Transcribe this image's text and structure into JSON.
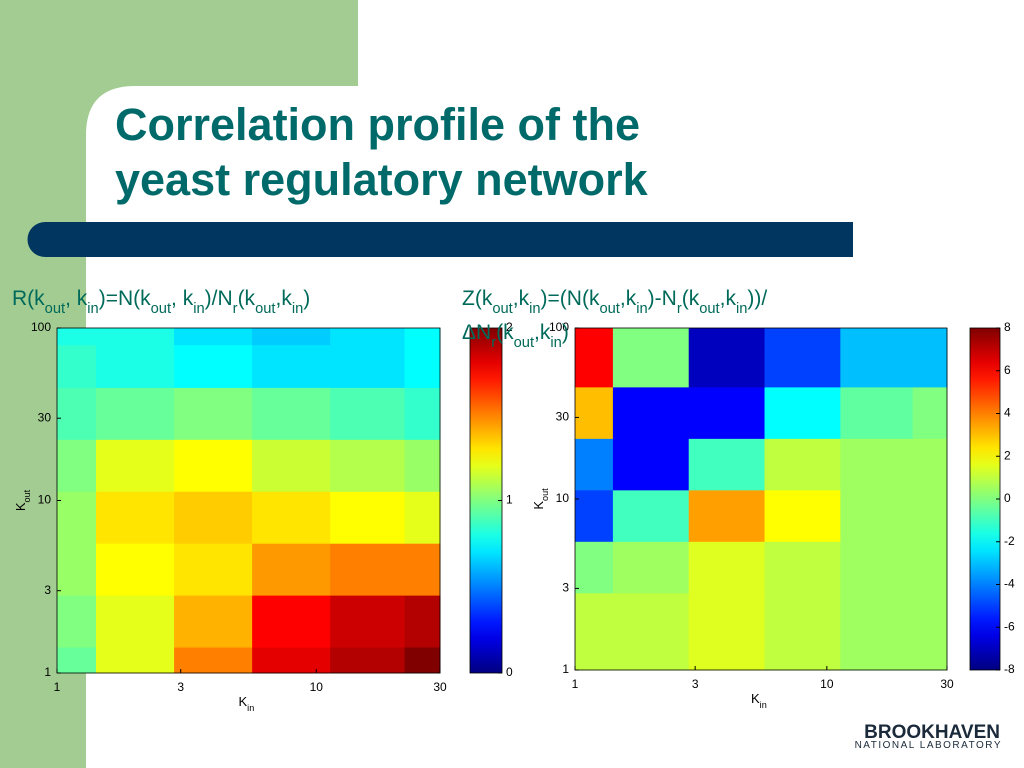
{
  "title": [
    "Correlation profile of the",
    "yeast regulatory network"
  ],
  "logo": {
    "name": "BROOKHAVEN",
    "subtitle": "NATIONAL LABORATORY"
  },
  "chart_data": [
    {
      "type": "heatmap",
      "formula": [
        [
          "R(k",
          "out",
          ", k",
          "in",
          ")=N(k",
          "out",
          ", k",
          "in",
          ")/N",
          "r",
          "(k",
          "out",
          ",k",
          "in",
          ")"
        ]
      ],
      "xlabel": [
        "K",
        "in"
      ],
      "ylabel": [
        "K",
        "out"
      ],
      "xscale": "log",
      "yscale": "log",
      "colormap": "jet",
      "x": [
        1,
        2,
        4,
        8,
        16,
        30
      ],
      "y": [
        1,
        2,
        4,
        8,
        16,
        32,
        64,
        100
      ],
      "values": [
        [
          0.95,
          1.2,
          1.5,
          1.8,
          1.9,
          2.0
        ],
        [
          1.0,
          1.2,
          1.4,
          1.75,
          1.85,
          1.9
        ],
        [
          1.05,
          1.25,
          1.3,
          1.45,
          1.5,
          1.5
        ],
        [
          1.05,
          1.3,
          1.35,
          1.3,
          1.25,
          1.2
        ],
        [
          1.0,
          1.2,
          1.25,
          1.15,
          1.1,
          1.05
        ],
        [
          0.9,
          0.95,
          1.0,
          0.95,
          0.9,
          0.85
        ],
        [
          0.85,
          0.8,
          0.75,
          0.7,
          0.7,
          0.75
        ],
        [
          0.8,
          0.8,
          0.7,
          0.65,
          0.7,
          0.75
        ]
      ],
      "xlim": [
        1,
        30
      ],
      "ylim": [
        1,
        100
      ],
      "xticks": [
        1,
        3,
        10,
        30
      ],
      "yticks": [
        1,
        3,
        10,
        30,
        100
      ],
      "clim": [
        0,
        2
      ],
      "cticks": [
        0,
        1,
        2
      ]
    },
    {
      "type": "heatmap",
      "formula": [
        [
          "Z(k",
          "out",
          ",k",
          "in",
          ")=(N(k",
          "out",
          ",k",
          "in",
          ")-N",
          "r",
          "(k",
          "out",
          ",k",
          "in",
          "))/"
        ],
        [
          "ΔN",
          "r",
          "(k",
          "out",
          ",k",
          "in",
          ")"
        ]
      ],
      "xlabel": [
        "K",
        "in"
      ],
      "ylabel": [
        "K",
        "out"
      ],
      "xscale": "log",
      "yscale": "log",
      "colormap": "jet",
      "x": [
        1,
        2,
        4,
        8,
        16,
        30
      ],
      "y": [
        1,
        2,
        4,
        8,
        16,
        32,
        64,
        100
      ],
      "values": [
        [
          1,
          1,
          1.5,
          1,
          0.5,
          0.5
        ],
        [
          1,
          1,
          1.5,
          1,
          0.5,
          0.5
        ],
        [
          0,
          0.5,
          1.5,
          1,
          0.5,
          0.5
        ],
        [
          -5,
          -1,
          3.5,
          2,
          0.5,
          0.5
        ],
        [
          -4,
          -6,
          -1,
          1,
          0.5,
          0.5
        ],
        [
          3,
          -6,
          -6,
          -2,
          -0.5,
          0
        ],
        [
          6,
          0,
          -7,
          -5,
          -3,
          -3
        ],
        [
          6,
          0,
          -7,
          -5,
          -3,
          -3
        ]
      ],
      "xlim": [
        1,
        30
      ],
      "ylim": [
        1,
        100
      ],
      "xticks": [
        1,
        3,
        10,
        30
      ],
      "yticks": [
        1,
        3,
        10,
        30,
        100
      ],
      "clim": [
        -8,
        8
      ],
      "cticks": [
        -8,
        -6,
        -4,
        -2,
        0,
        2,
        4,
        6,
        8
      ]
    }
  ]
}
